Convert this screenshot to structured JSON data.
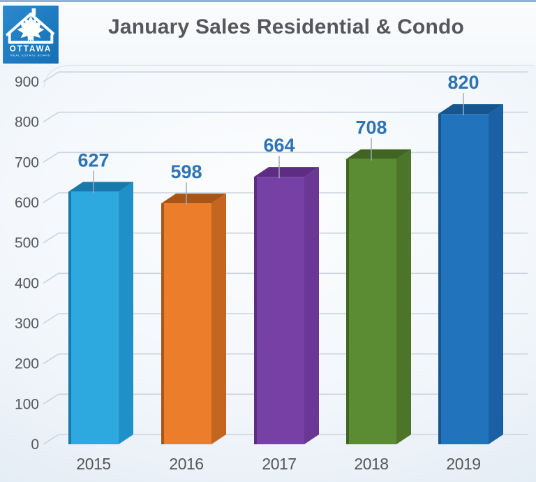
{
  "logo": {
    "org": "OTTAWA",
    "sub": "REAL ESTATE BOARD",
    "bg_color": "#1878BF"
  },
  "chart_data": {
    "type": "bar",
    "title": "January Sales Residential & Condo",
    "categories": [
      "2015",
      "2016",
      "2017",
      "2018",
      "2019"
    ],
    "values": [
      627,
      598,
      664,
      708,
      820
    ],
    "value_labels": [
      "627",
      "598",
      "664",
      "708",
      "820"
    ],
    "xlabel": "",
    "ylabel": "",
    "ylim": [
      0,
      900
    ],
    "ytick_step": 100,
    "grid": true,
    "legend": false,
    "style": "3d-column",
    "bar_colors": [
      {
        "front": "#2EA9E0",
        "top": "#1879AC",
        "side": "#2090C8"
      },
      {
        "front": "#EC7D2B",
        "top": "#A85618",
        "side": "#C4661F"
      },
      {
        "front": "#7740A5",
        "top": "#5C2D82",
        "side": "#6A3795"
      },
      {
        "front": "#5B8C34",
        "top": "#406523",
        "side": "#4C7529"
      },
      {
        "front": "#2173BC",
        "top": "#15568F",
        "side": "#1B60A5"
      }
    ],
    "value_label_color": "#2E74B5",
    "axis_label_color": "#54565A",
    "gridline_color": "#CBD3DC",
    "leader_line_color": "#A3ABB4",
    "title_color": "#56575B"
  }
}
